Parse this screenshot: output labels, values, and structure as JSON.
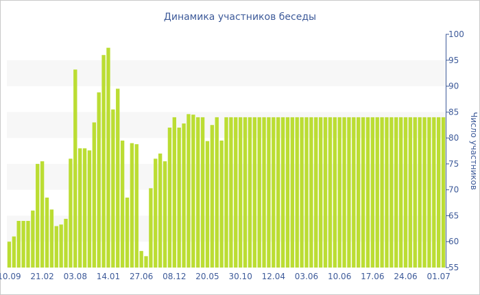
{
  "chart_data": {
    "type": "bar",
    "title": "Динамика участников беседы",
    "ylabel": "Число участников",
    "xlabel": "",
    "ylim": [
      55,
      100
    ],
    "yticks": [
      55,
      60,
      65,
      70,
      75,
      80,
      85,
      90,
      95,
      100
    ],
    "y_axis_side": "right",
    "grid": "alternating horizontal bands",
    "bar_color": "#bbdd33",
    "band_color": "#f7f7f7",
    "text_color": "#3d5a99",
    "x_tick_labels": [
      "10.09",
      "21.02",
      "03.08",
      "14.01",
      "27.06",
      "08.12",
      "20.05",
      "30.10",
      "12.04",
      "03.06",
      "10.06",
      "17.06",
      "24.06",
      "01.07"
    ],
    "x_tick_bar_index": [
      0,
      7,
      14,
      21,
      28,
      35,
      42,
      49,
      56,
      63,
      70,
      77,
      84,
      91
    ],
    "values": [
      60,
      61,
      64,
      64,
      64,
      66,
      75,
      75.5,
      68.5,
      66.2,
      63,
      63.3,
      64.4,
      76,
      93.2,
      78,
      78,
      77.6,
      83,
      88.8,
      96,
      97.4,
      85.5,
      89.5,
      79.5,
      68.5,
      79,
      78.8,
      58.2,
      57.2,
      70.3,
      76,
      77,
      75.5,
      82,
      84,
      82,
      82.8,
      84.6,
      84.5,
      84,
      84,
      79.4,
      82.5,
      84,
      79.5,
      84,
      84,
      84,
      84,
      84,
      84,
      84,
      84,
      84,
      84,
      84,
      84,
      84,
      84,
      84,
      84,
      84,
      84,
      84,
      84,
      84,
      84,
      84,
      84,
      84,
      84,
      84,
      84,
      84,
      84,
      84,
      84,
      84,
      84,
      84,
      84,
      84,
      84,
      84,
      84,
      84,
      84,
      84,
      84,
      84,
      84,
      84
    ]
  }
}
